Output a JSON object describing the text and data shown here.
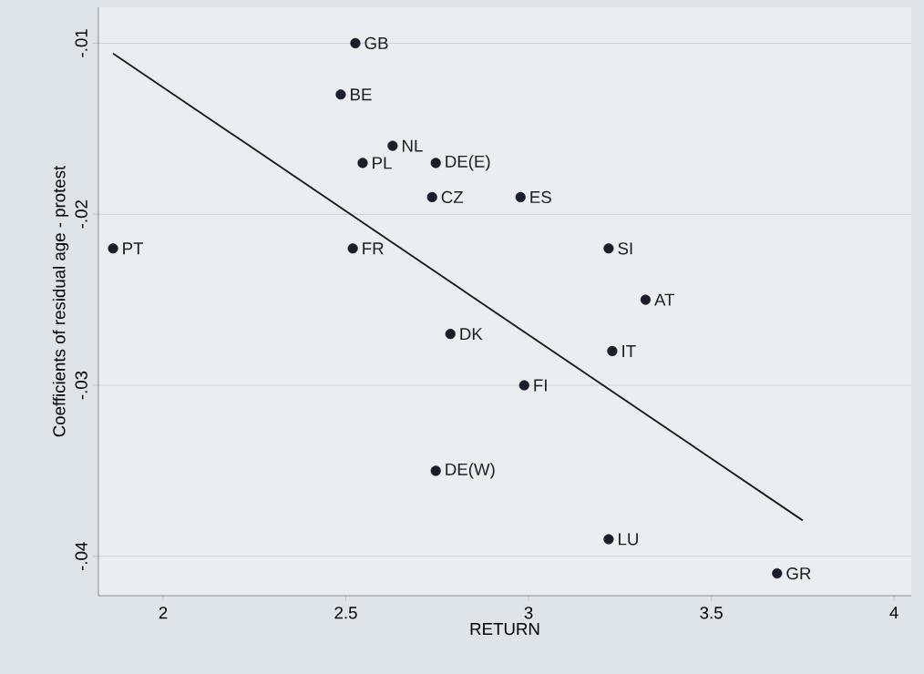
{
  "chart_data": {
    "type": "scatter",
    "xlabel": "RETURN",
    "ylabel": "Coefficients of residual age - protest",
    "xlim": [
      1.823,
      4.047
    ],
    "ylim": [
      -0.0423,
      -0.0079
    ],
    "xticks": [
      2,
      2.5,
      3,
      3.5,
      4
    ],
    "yticks": [
      {
        "value": -0.04,
        "label": "-.04"
      },
      {
        "value": -0.03,
        "label": "-.03"
      },
      {
        "value": -0.02,
        "label": "-.02"
      },
      {
        "value": -0.01,
        "label": "-.01"
      }
    ],
    "grid": "y",
    "series": [
      {
        "color": "#1c1c2c",
        "marker": "circle",
        "x": [
          2.526,
          2.486,
          2.628,
          2.546,
          2.746,
          2.736,
          2.978,
          1.863,
          2.519,
          3.219,
          3.32,
          2.786,
          3.229,
          2.988,
          2.746,
          3.219,
          3.68
        ],
        "values": [
          -0.01,
          -0.013,
          -0.016,
          -0.017,
          -0.017,
          -0.019,
          -0.019,
          -0.022,
          -0.022,
          -0.022,
          -0.025,
          -0.027,
          -0.028,
          -0.03,
          -0.035,
          -0.039,
          -0.041
        ]
      },
      {
        "type": "line",
        "color": "#1a1a1a",
        "marker": "none",
        "x": [
          1.863,
          3.75
        ],
        "values": [
          -0.0106,
          -0.0379
        ]
      }
    ],
    "annotations": [
      {
        "text": "GB",
        "x": 2.526,
        "y": -0.01
      },
      {
        "text": "BE",
        "x": 2.486,
        "y": -0.013
      },
      {
        "text": "NL",
        "x": 2.628,
        "y": -0.016
      },
      {
        "text": "PL",
        "x": 2.546,
        "y": -0.017
      },
      {
        "text": "DE(E)",
        "x": 2.746,
        "y": -0.017
      },
      {
        "text": "CZ",
        "x": 2.736,
        "y": -0.019
      },
      {
        "text": "ES",
        "x": 2.978,
        "y": -0.019
      },
      {
        "text": "PT",
        "x": 1.863,
        "y": -0.022
      },
      {
        "text": "FR",
        "x": 2.519,
        "y": -0.022
      },
      {
        "text": "SI",
        "x": 3.219,
        "y": -0.022
      },
      {
        "text": "AT",
        "x": 3.32,
        "y": -0.025
      },
      {
        "text": "DK",
        "x": 2.786,
        "y": -0.027
      },
      {
        "text": "IT",
        "x": 3.229,
        "y": -0.028
      },
      {
        "text": "FI",
        "x": 2.988,
        "y": -0.03
      },
      {
        "text": "DE(W)",
        "x": 2.746,
        "y": -0.035
      },
      {
        "text": "LU",
        "x": 3.219,
        "y": -0.039
      },
      {
        "text": "GR",
        "x": 3.68,
        "y": -0.041
      }
    ]
  }
}
